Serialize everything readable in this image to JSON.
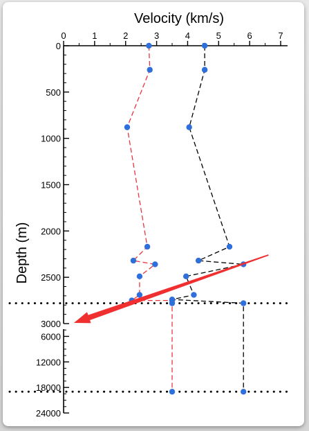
{
  "chart_data": {
    "type": "line",
    "title": "",
    "xlabel": "Velocity (km/s)",
    "ylabel": "Depth (m)",
    "xlim": [
      0,
      7
    ],
    "x_ticks": [
      0,
      1,
      2,
      3,
      4,
      5,
      6,
      7
    ],
    "ylim_upper": [
      0,
      3000
    ],
    "y_ticks_upper": [
      0,
      500,
      1000,
      1500,
      2000,
      2500,
      3000
    ],
    "ylim_lower": [
      3000,
      24000
    ],
    "y_ticks_lower": [
      6000,
      12000,
      18000,
      24000
    ],
    "x_tick_labels": [
      "0",
      "1",
      "2",
      "3",
      "4",
      "5",
      "6",
      "7"
    ],
    "y_tick_labels_upper": [
      "0",
      "500",
      "1000",
      "1500",
      "2000",
      "2500",
      "3000"
    ],
    "y_tick_labels_lower": [
      "6000",
      "12000",
      "18000",
      "24000"
    ],
    "grid": false,
    "series": [
      {
        "color": "#e8353f",
        "marker_color": "#2f6fdc",
        "line_style": "dashed",
        "points": [
          {
            "x": 2.75,
            "y": 0
          },
          {
            "x": 2.78,
            "y": 260
          },
          {
            "x": 2.05,
            "y": 880
          },
          {
            "x": 2.7,
            "y": 2170
          },
          {
            "x": 2.25,
            "y": 2320
          },
          {
            "x": 2.95,
            "y": 2360
          },
          {
            "x": 2.45,
            "y": 2490
          },
          {
            "x": 2.45,
            "y": 2690
          },
          {
            "x": 2.2,
            "y": 2750
          },
          {
            "x": 3.5,
            "y": 2750
          },
          {
            "x": 3.5,
            "y": 2780
          },
          {
            "x": 3.5,
            "y": 19000
          }
        ]
      },
      {
        "color": "#000000",
        "marker_color": "#2f6fdc",
        "line_style": "dashed",
        "points": [
          {
            "x": 4.55,
            "y": 0
          },
          {
            "x": 4.55,
            "y": 260
          },
          {
            "x": 4.05,
            "y": 880
          },
          {
            "x": 5.35,
            "y": 2170
          },
          {
            "x": 4.35,
            "y": 2320
          },
          {
            "x": 5.8,
            "y": 2360
          },
          {
            "x": 3.95,
            "y": 2490
          },
          {
            "x": 4.2,
            "y": 2690
          },
          {
            "x": 3.5,
            "y": 2740
          },
          {
            "x": 5.8,
            "y": 2780
          },
          {
            "x": 5.8,
            "y": 19000
          }
        ]
      }
    ],
    "horizontal_lines": [
      {
        "y": 2780,
        "style": "dotted",
        "color": "#000000"
      },
      {
        "y": 19000,
        "style": "dotted",
        "color": "#000000"
      }
    ],
    "arrow": {
      "color": "#f03030",
      "from": {
        "x": 6.6,
        "y": 2260
      },
      "to": {
        "x": 0.35,
        "y": 2990
      }
    }
  }
}
